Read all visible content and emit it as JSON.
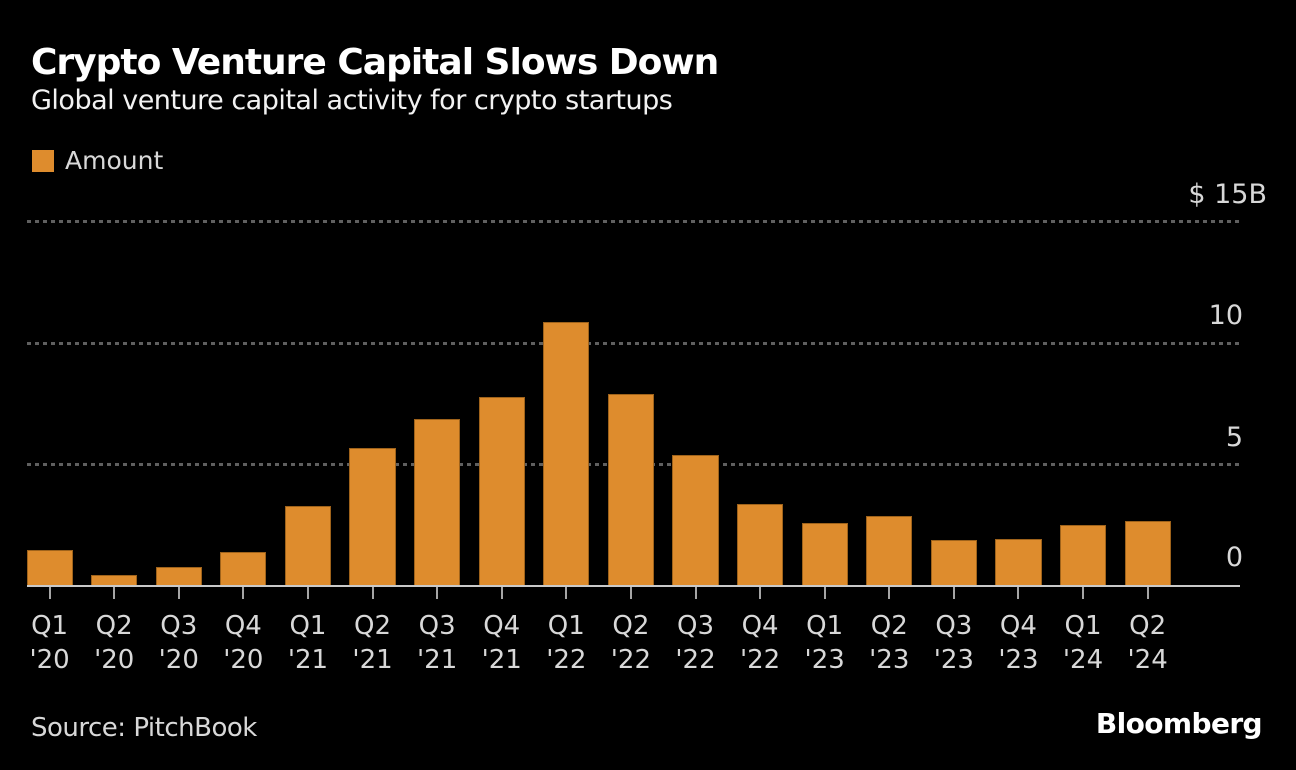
{
  "header": {
    "title": "Crypto Venture Capital Slows Down",
    "subtitle": "Global venture capital activity for crypto startups"
  },
  "legend": {
    "items": [
      {
        "label": "Amount",
        "color": "#DE8C2D",
        "swatch": "orange-square"
      }
    ]
  },
  "chart_data": {
    "type": "bar",
    "title": "Crypto Venture Capital Slows Down",
    "subtitle": "Global venture capital activity for crypto startups",
    "series_name": "Amount",
    "categories": [
      "Q1 '20",
      "Q2 '20",
      "Q3 '20",
      "Q4 '20",
      "Q1 '21",
      "Q2 '21",
      "Q3 '21",
      "Q4 '21",
      "Q1 '22",
      "Q2 '22",
      "Q3 '22",
      "Q4 '22",
      "Q1 '23",
      "Q2 '23",
      "Q3 '23",
      "Q4 '23",
      "Q1 '24",
      "Q2 '24"
    ],
    "values": [
      1.5,
      0.45,
      0.8,
      1.4,
      3.3,
      5.7,
      6.9,
      7.8,
      10.9,
      7.9,
      5.4,
      3.4,
      2.6,
      2.9,
      1.9,
      1.95,
      2.5,
      2.7
    ],
    "unit": "billions USD",
    "ylim": [
      0,
      15
    ],
    "yticks": [
      0,
      5,
      10,
      15
    ],
    "ytick_labels_top_to_bottom": [
      "$ 15B",
      "10",
      "5",
      "0"
    ],
    "grid": "horizontal dashed",
    "legend_position": "top-left",
    "bar_color": "#DE8C2D",
    "background_color": "#000000",
    "grid_color": "#5f5f5f"
  },
  "footer": {
    "source": "Source: PitchBook",
    "brand": "Bloomberg"
  }
}
